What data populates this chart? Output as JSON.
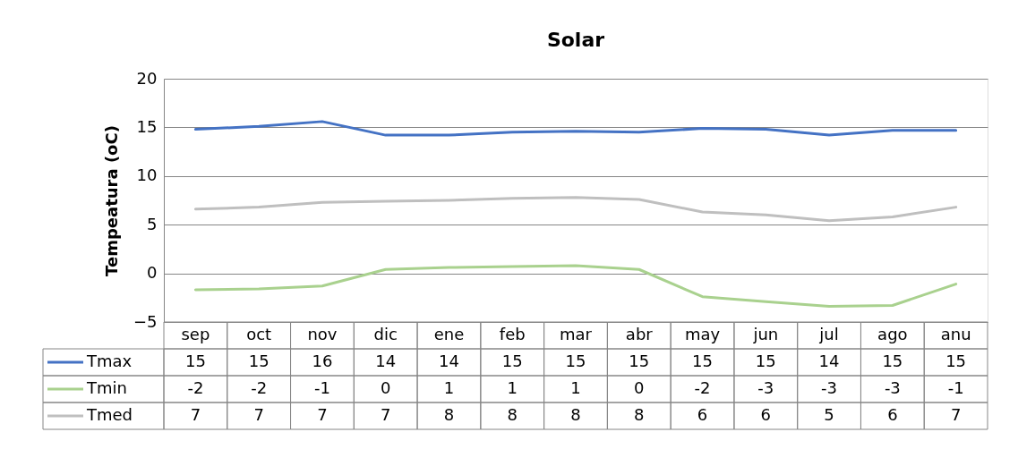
{
  "chart_data": {
    "type": "line",
    "title": "Solar",
    "ylabel": "Tempeatura (oC)",
    "categories": [
      "sep",
      "oct",
      "nov",
      "dic",
      "ene",
      "feb",
      "mar",
      "abr",
      "may",
      "jun",
      "jul",
      "ago",
      "anu"
    ],
    "ylim": [
      -5,
      20
    ],
    "yticks": [
      -5,
      0,
      5,
      10,
      15,
      20
    ],
    "grid": "y",
    "legend": "bottom left",
    "marker": "none",
    "line_style": "solid",
    "series": [
      {
        "name": "Tmax",
        "color": "#4472c4",
        "values": [
          14.8,
          15.1,
          15.6,
          14.2,
          14.2,
          14.5,
          14.6,
          14.5,
          14.9,
          14.8,
          14.2,
          14.7,
          14.7
        ],
        "value_labels": [
          "15",
          "15",
          "16",
          "14",
          "14",
          "15",
          "15",
          "15",
          "15",
          "15",
          "14",
          "15",
          "15"
        ]
      },
      {
        "name": "Tmin",
        "color": "#a9d18e",
        "values": [
          -1.7,
          -1.6,
          -1.3,
          0.4,
          0.6,
          0.7,
          0.8,
          0.4,
          -2.4,
          -2.9,
          -3.4,
          -3.3,
          -1.1
        ],
        "value_labels": [
          "-2",
          "-2",
          "-1",
          "0",
          "1",
          "1",
          "1",
          "0",
          "-2",
          "-3",
          "-3",
          "-3",
          "-1"
        ]
      },
      {
        "name": "Tmed",
        "color": "#bfbfbf",
        "values": [
          6.6,
          6.8,
          7.3,
          7.4,
          7.5,
          7.7,
          7.8,
          7.6,
          6.3,
          6.0,
          5.4,
          5.8,
          6.8
        ],
        "value_labels": [
          "7",
          "7",
          "7",
          "7",
          "8",
          "8",
          "8",
          "8",
          "6",
          "6",
          "5",
          "6",
          "7"
        ]
      }
    ]
  }
}
